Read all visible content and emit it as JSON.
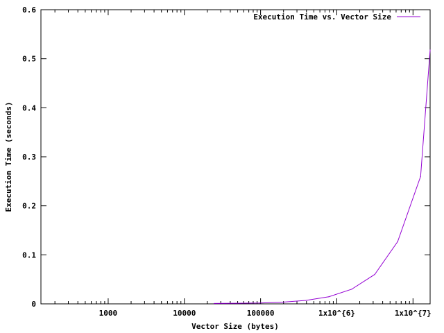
{
  "chart_data": {
    "type": "line",
    "title": "",
    "xlabel": "Vector Size (bytes)",
    "ylabel": "Execution Time (seconds)",
    "x_scale": "log",
    "xlim": [
      131.072,
      16777216
    ],
    "ylim": [
      0,
      0.6
    ],
    "x_ticks": [
      {
        "value": 1000,
        "label": "1000"
      },
      {
        "value": 10000,
        "label": "10000"
      },
      {
        "value": 100000,
        "label": "100000"
      },
      {
        "value": 1000000,
        "label": "1x10^{6}"
      },
      {
        "value": 10000000,
        "label": "1x10^{7}"
      }
    ],
    "y_ticks": [
      {
        "value": 0,
        "label": "0"
      },
      {
        "value": 0.1,
        "label": "0.1"
      },
      {
        "value": 0.2,
        "label": "0.2"
      },
      {
        "value": 0.3,
        "label": "0.3"
      },
      {
        "value": 0.4,
        "label": "0.4"
      },
      {
        "value": 0.5,
        "label": "0.5"
      },
      {
        "value": 0.6,
        "label": "0.6"
      }
    ],
    "grid": false,
    "legend_position": "top-right",
    "series": [
      {
        "name": "Execution Time vs. Vector Size",
        "color": "#9400d3",
        "x": [
          24576,
          49152,
          98304,
          196608,
          393216,
          786432,
          1572864,
          3145728,
          6291456,
          12582912,
          16777216
        ],
        "y": [
          0.0008,
          0.0012,
          0.0018,
          0.0035,
          0.007,
          0.0145,
          0.03,
          0.06,
          0.127,
          0.26,
          0.518
        ]
      }
    ]
  }
}
